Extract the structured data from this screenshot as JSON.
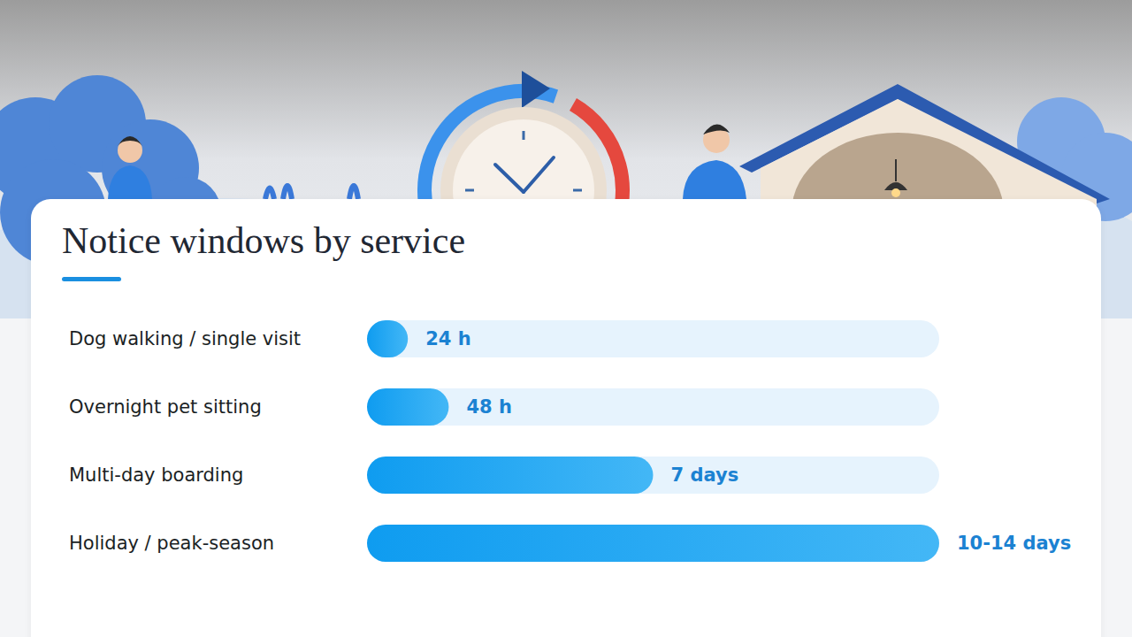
{
  "chart_data": {
    "type": "bar",
    "title": "Notice windows by service",
    "orientation": "horizontal",
    "categories": [
      "Dog walking / single visit",
      "Overnight pet sitting",
      "Multi-day boarding",
      "Holiday / peak-season"
    ],
    "values": [
      24,
      48,
      168,
      336
    ],
    "value_labels": [
      "24 h",
      "48 h",
      "7 days",
      "10-14 days"
    ],
    "color": "#0f9cf0",
    "xlim": [
      0,
      336
    ],
    "data_labels": true,
    "tick_labels": "y",
    "grid": false
  }
}
